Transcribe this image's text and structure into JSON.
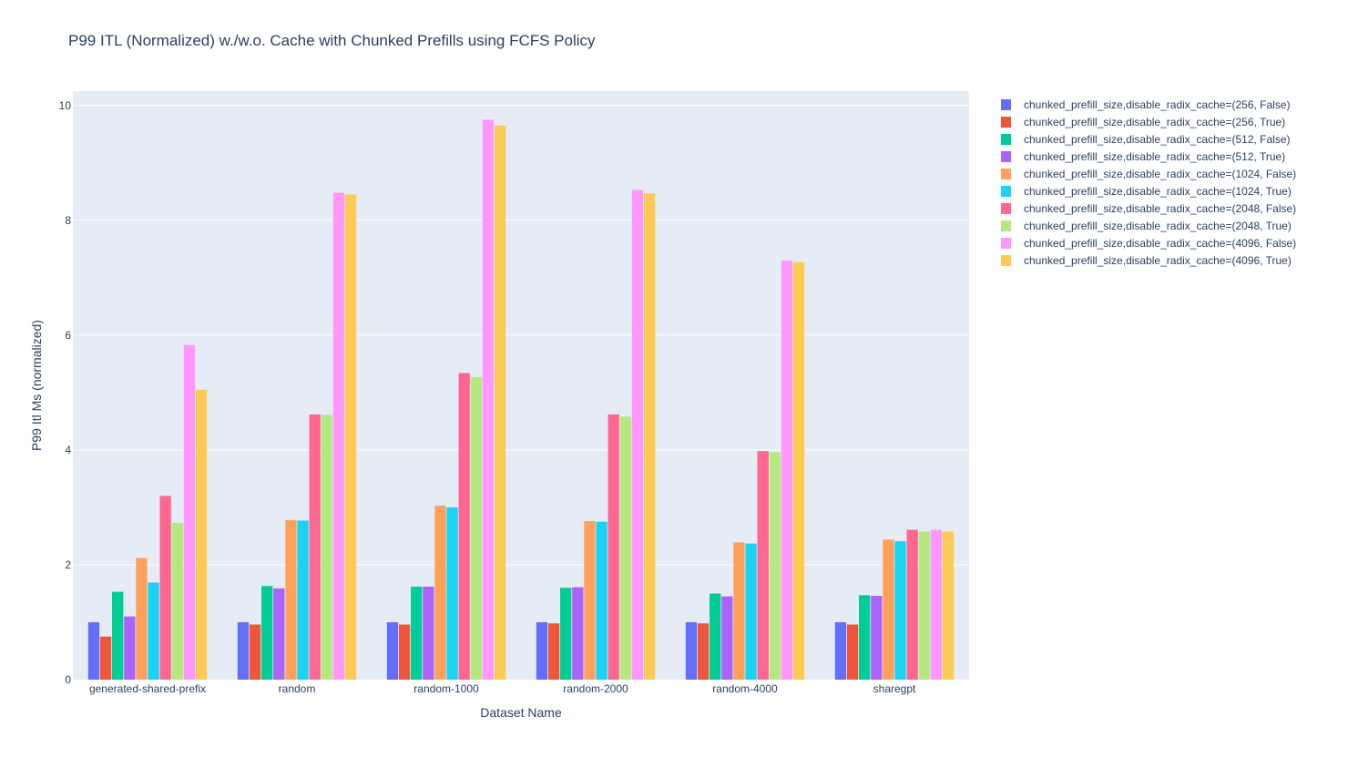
{
  "chart_data": {
    "type": "bar",
    "title": "P99 ITL (Normalized) w./w.o. Cache with Chunked Prefills using FCFS Policy",
    "xlabel": "Dataset Name",
    "ylabel": "P99 Itl Ms (normalized)",
    "ylim": [
      0,
      10.25
    ],
    "yticks": [
      "0",
      "2",
      "4",
      "6",
      "8",
      "10"
    ],
    "grid": true,
    "legend_position": "right",
    "plot_background": "#e5ecf6",
    "categories": [
      "generated-shared-prefix",
      "random",
      "random-1000",
      "random-2000",
      "random-4000",
      "sharegpt"
    ],
    "series": [
      {
        "name": "chunked_prefill_size,disable_radix_cache=(256, False)",
        "color": "#636efa",
        "values": [
          1.0,
          1.0,
          1.0,
          1.0,
          1.0,
          1.0
        ]
      },
      {
        "name": "chunked_prefill_size,disable_radix_cache=(256, True)",
        "color": "#ef553b",
        "values": [
          0.75,
          0.96,
          0.96,
          0.98,
          0.98,
          0.96
        ]
      },
      {
        "name": "chunked_prefill_size,disable_radix_cache=(512, False)",
        "color": "#00cc96",
        "values": [
          1.53,
          1.63,
          1.62,
          1.6,
          1.5,
          1.47
        ]
      },
      {
        "name": "chunked_prefill_size,disable_radix_cache=(512, True)",
        "color": "#ab63fa",
        "values": [
          1.1,
          1.59,
          1.62,
          1.61,
          1.45,
          1.46
        ]
      },
      {
        "name": "chunked_prefill_size,disable_radix_cache=(1024, False)",
        "color": "#ffa15a",
        "values": [
          2.12,
          2.78,
          3.03,
          2.76,
          2.39,
          2.44
        ]
      },
      {
        "name": "chunked_prefill_size,disable_radix_cache=(1024, True)",
        "color": "#19d3f3",
        "values": [
          1.69,
          2.77,
          3.0,
          2.75,
          2.37,
          2.41
        ]
      },
      {
        "name": "chunked_prefill_size,disable_radix_cache=(2048, False)",
        "color": "#ff6692",
        "values": [
          3.2,
          4.62,
          5.34,
          4.62,
          3.98,
          2.61
        ]
      },
      {
        "name": "chunked_prefill_size,disable_radix_cache=(2048, True)",
        "color": "#b6e880",
        "values": [
          2.73,
          4.61,
          5.27,
          4.58,
          3.96,
          2.58
        ]
      },
      {
        "name": "chunked_prefill_size,disable_radix_cache=(4096, False)",
        "color": "#ff97ff",
        "values": [
          5.83,
          8.48,
          9.75,
          8.53,
          7.3,
          2.61
        ]
      },
      {
        "name": "chunked_prefill_size,disable_radix_cache=(4096, True)",
        "color": "#fecb52",
        "values": [
          5.05,
          8.45,
          9.65,
          8.47,
          7.27,
          2.58
        ]
      }
    ]
  }
}
